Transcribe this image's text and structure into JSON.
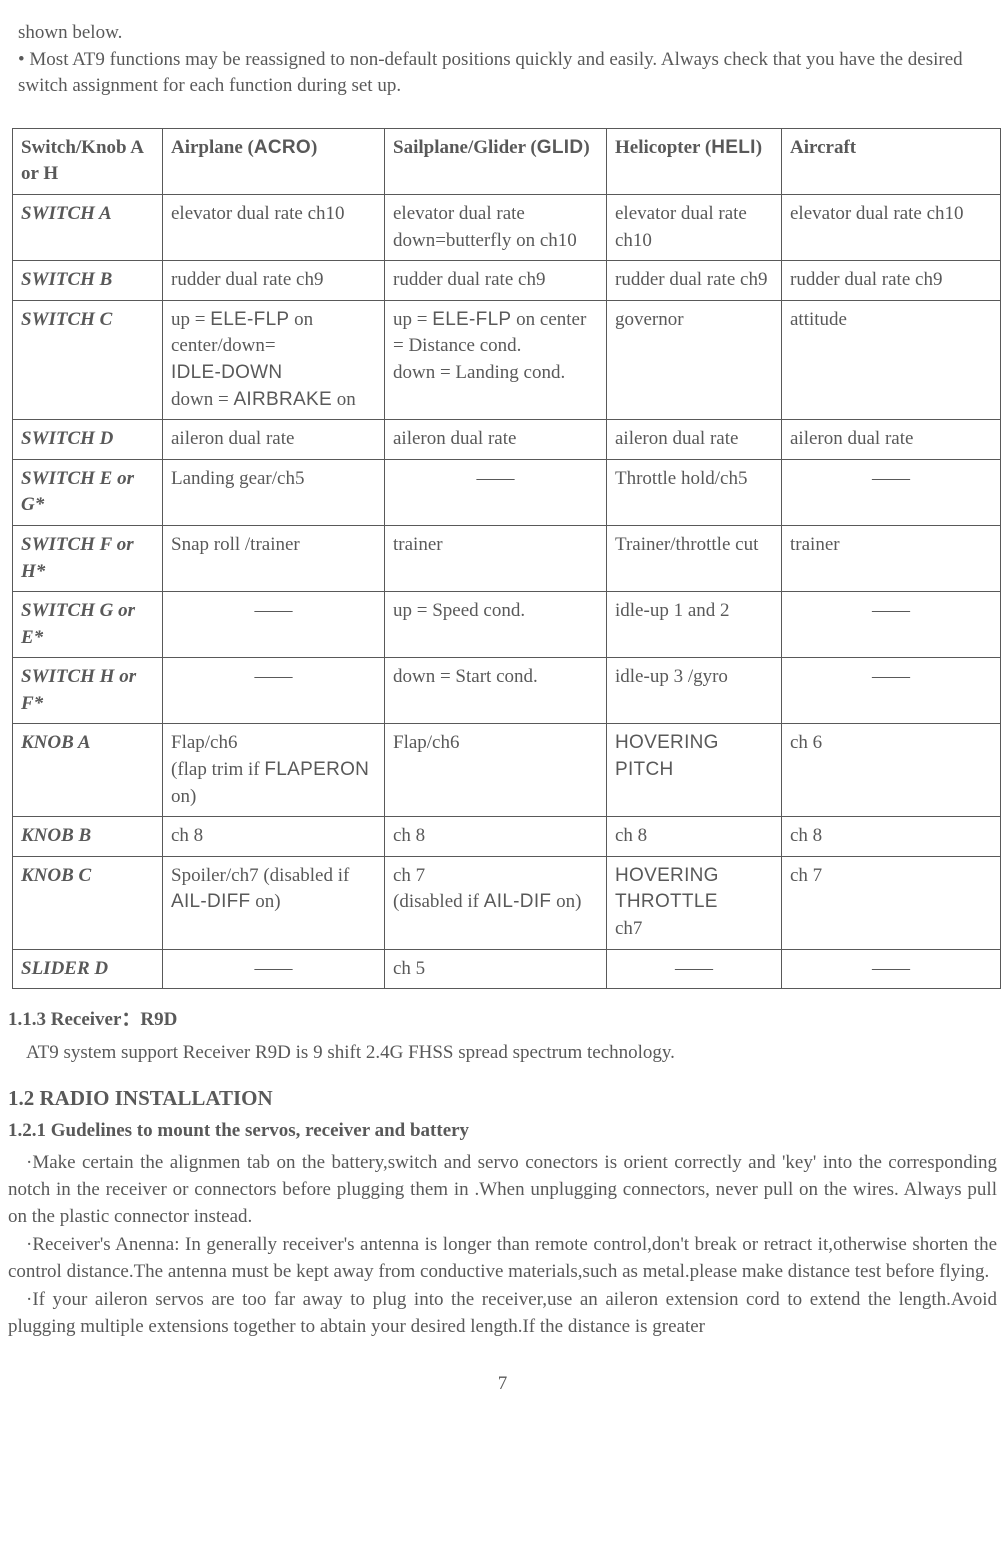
{
  "intro": {
    "line1": "shown below.",
    "line2": "• Most AT9 functions may be reassigned to non-default positions quickly and easily. Always check that you have the desired switch assignment for each function during set up."
  },
  "table": {
    "header": {
      "c1": "Switch/Knob A or H",
      "c2a": "Airplane (",
      "c2b": "ACRO",
      "c2c": ")",
      "c3a": "Sailplane/Glider (",
      "c3b": "GLID",
      "c3c": ")",
      "c4a": "Helicopter (",
      "c4b": "HELI",
      "c4c": ")",
      "c5": "Aircraft"
    },
    "r1": {
      "label": "SWITCH A",
      "c2": "elevator dual rate ch10",
      "c3": "elevator dual rate down=butterfly on ch10",
      "c4": "elevator dual rate ch10",
      "c5": "elevator dual rate ch10"
    },
    "r2": {
      "label": "SWITCH B",
      "c2": "rudder dual rate ch9",
      "c3": "rudder dual rate ch9",
      "c4": "rudder dual rate ch9",
      "c5": "rudder dual rate ch9"
    },
    "r3": {
      "label": "SWITCH C",
      "c2a": "up = ",
      "c2b": "ELE-FLP",
      "c2c": " on center/down= ",
      "c2d": "IDLE-DOWN",
      "c2e": " down = ",
      "c2f": "AIRBRAKE",
      "c2g": " on",
      "c3a": "up = ",
      "c3b": "ELE-FLP",
      "c3c": " on center = Distance cond.",
      "c3d": "down = Landing cond.",
      "c4": "governor",
      "c5": "attitude"
    },
    "r4": {
      "label": "SWITCH D",
      "c2": "aileron dual rate",
      "c3": "aileron dual rate",
      "c4": "aileron dual rate",
      "c5": "aileron dual rate"
    },
    "r5": {
      "label": "SWITCH E or G*",
      "c2": "Landing gear/ch5",
      "c3": "——",
      "c4": "Throttle hold/ch5",
      "c5": "——"
    },
    "r6": {
      "label": "SWITCH F or H*",
      "c2": "Snap roll /trainer",
      "c3": "trainer",
      "c4": "Trainer/throttle cut",
      "c5": "trainer"
    },
    "r7": {
      "label": "SWITCH G or E*",
      "c2": "——",
      "c3": "up = Speed cond.",
      "c4": "idle-up 1 and 2",
      "c5": "——"
    },
    "r8": {
      "label": "SWITCH H or F*",
      "c2": "——",
      "c3": "down = Start cond.",
      "c4": "idle-up 3 /gyro",
      "c5": "——"
    },
    "r9": {
      "label": "KNOB A",
      "c2a": "Flap/ch6",
      "c2b": "(flap trim   if ",
      "c2c": "FLAPERON",
      "c2d": " on)",
      "c3": "Flap/ch6",
      "c4": "HOVERING PITCH",
      "c5": "ch 6"
    },
    "r10": {
      "label": "KNOB B",
      "c2": "ch 8",
      "c3": "ch 8",
      "c4": "ch 8",
      "c5": "ch 8"
    },
    "r11": {
      "label": "KNOB C",
      "c2a": "Spoiler/ch7 (disabled if ",
      "c2b": "AIL-DIFF",
      "c2c": " on)",
      "c3a": "ch 7",
      "c3b": "(disabled if ",
      "c3c": "AIL-DIF",
      "c3d": " on)",
      "c4a": "HOVERING THROTTLE",
      "c4b": "ch7",
      "c5": "ch 7"
    },
    "r12": {
      "label": "SLIDER D",
      "c2": "——",
      "c3": "ch 5",
      "c4": "——",
      "c5": "——"
    }
  },
  "sections": {
    "s113_title": "1.1.3 Receiver：R9D",
    "s113_body": "AT9 system support Receiver R9D is 9 shift 2.4G FHSS spread spectrum technology.",
    "s12_title": "1.2 RADIO INSTALLATION",
    "s121_title": "1.2.1 Gudelines to mount the servos, receiver and battery",
    "p1": "·Make certain the alignmen tab on the battery,switch and servo conectors is orient correctly and 'key' into the corresponding notch in the receiver or connectors before plugging them in .When unplugging connectors, never pull on the wires. Always pull on the plastic connector instead.",
    "p2": "·Receiver's Anenna: In generally receiver's antenna is longer than remote control,don't break or retract it,otherwise shorten the control distance.The antenna must be kept away from conductive materials,such as metal.please make distance test before flying.",
    "p3": "·If your aileron servos are too far away to plug into the receiver,use an aileron extension cord to extend the length.Avoid plugging multiple extensions together to abtain your desired length.If the distance is greater",
    "page_num": "7"
  }
}
